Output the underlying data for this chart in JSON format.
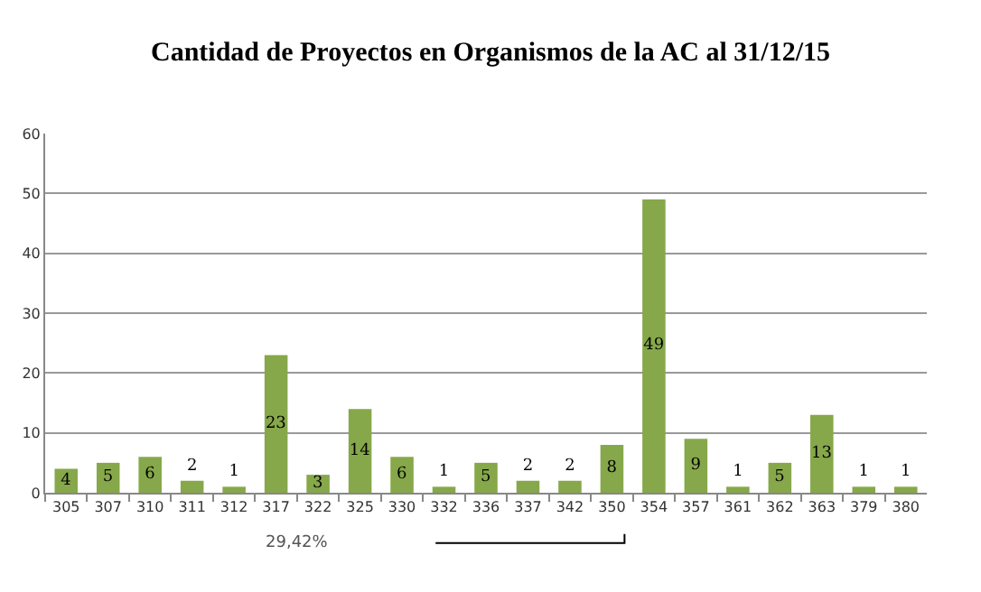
{
  "chart_data": {
    "type": "bar",
    "title": "Cantidad de Proyectos en Organismos de la AC al 31/12/15",
    "categories": [
      "305",
      "307",
      "310",
      "311",
      "312",
      "317",
      "322",
      "325",
      "330",
      "332",
      "336",
      "337",
      "342",
      "350",
      "354",
      "357",
      "361",
      "362",
      "363",
      "379",
      "380"
    ],
    "values": [
      4,
      5,
      6,
      2,
      1,
      23,
      3,
      14,
      6,
      1,
      5,
      2,
      2,
      8,
      49,
      9,
      1,
      5,
      13,
      1,
      1
    ],
    "color": "#86a84a",
    "ylim": [
      0,
      60
    ],
    "yticks": [
      0,
      10,
      20,
      30,
      40,
      50,
      60
    ],
    "grid": "y",
    "data_labels": true,
    "legend": false,
    "annotations": [
      "29,42%"
    ]
  }
}
